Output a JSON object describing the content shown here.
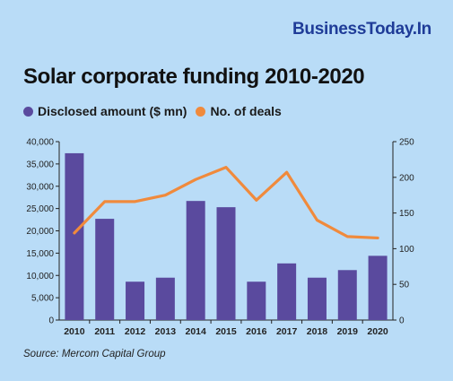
{
  "brand": "BusinessToday.In",
  "chart_data": {
    "type": "bar",
    "title": "Solar corporate funding 2010-2020",
    "categories": [
      "2010",
      "2011",
      "2012",
      "2013",
      "2014",
      "2015",
      "2016",
      "2017",
      "2018",
      "2019",
      "2020"
    ],
    "series": [
      {
        "name": "Disclosed amount ($ mn)",
        "type": "bar",
        "axis": "left",
        "color": "#5a4a9e",
        "values": [
          37400,
          22700,
          8600,
          9500,
          26700,
          25300,
          8600,
          12700,
          9500,
          11200,
          14400
        ]
      },
      {
        "name": "No. of deals",
        "type": "line",
        "axis": "right",
        "color": "#f08a3c",
        "values": [
          122,
          166,
          166,
          175,
          197,
          214,
          168,
          207,
          140,
          117,
          115
        ]
      }
    ],
    "y_left": {
      "ticks": [
        "0",
        "5,000",
        "10,000",
        "15,000",
        "20,000",
        "25,000",
        "30,000",
        "35,000",
        "40,000"
      ],
      "min": 0,
      "max": 40000
    },
    "y_right": {
      "ticks": [
        "0",
        "50",
        "100",
        "150",
        "200",
        "250"
      ],
      "min": 0,
      "max": 250
    },
    "legend_position": "top-left",
    "grid": false
  },
  "source": "Source: Mercom Capital Group"
}
